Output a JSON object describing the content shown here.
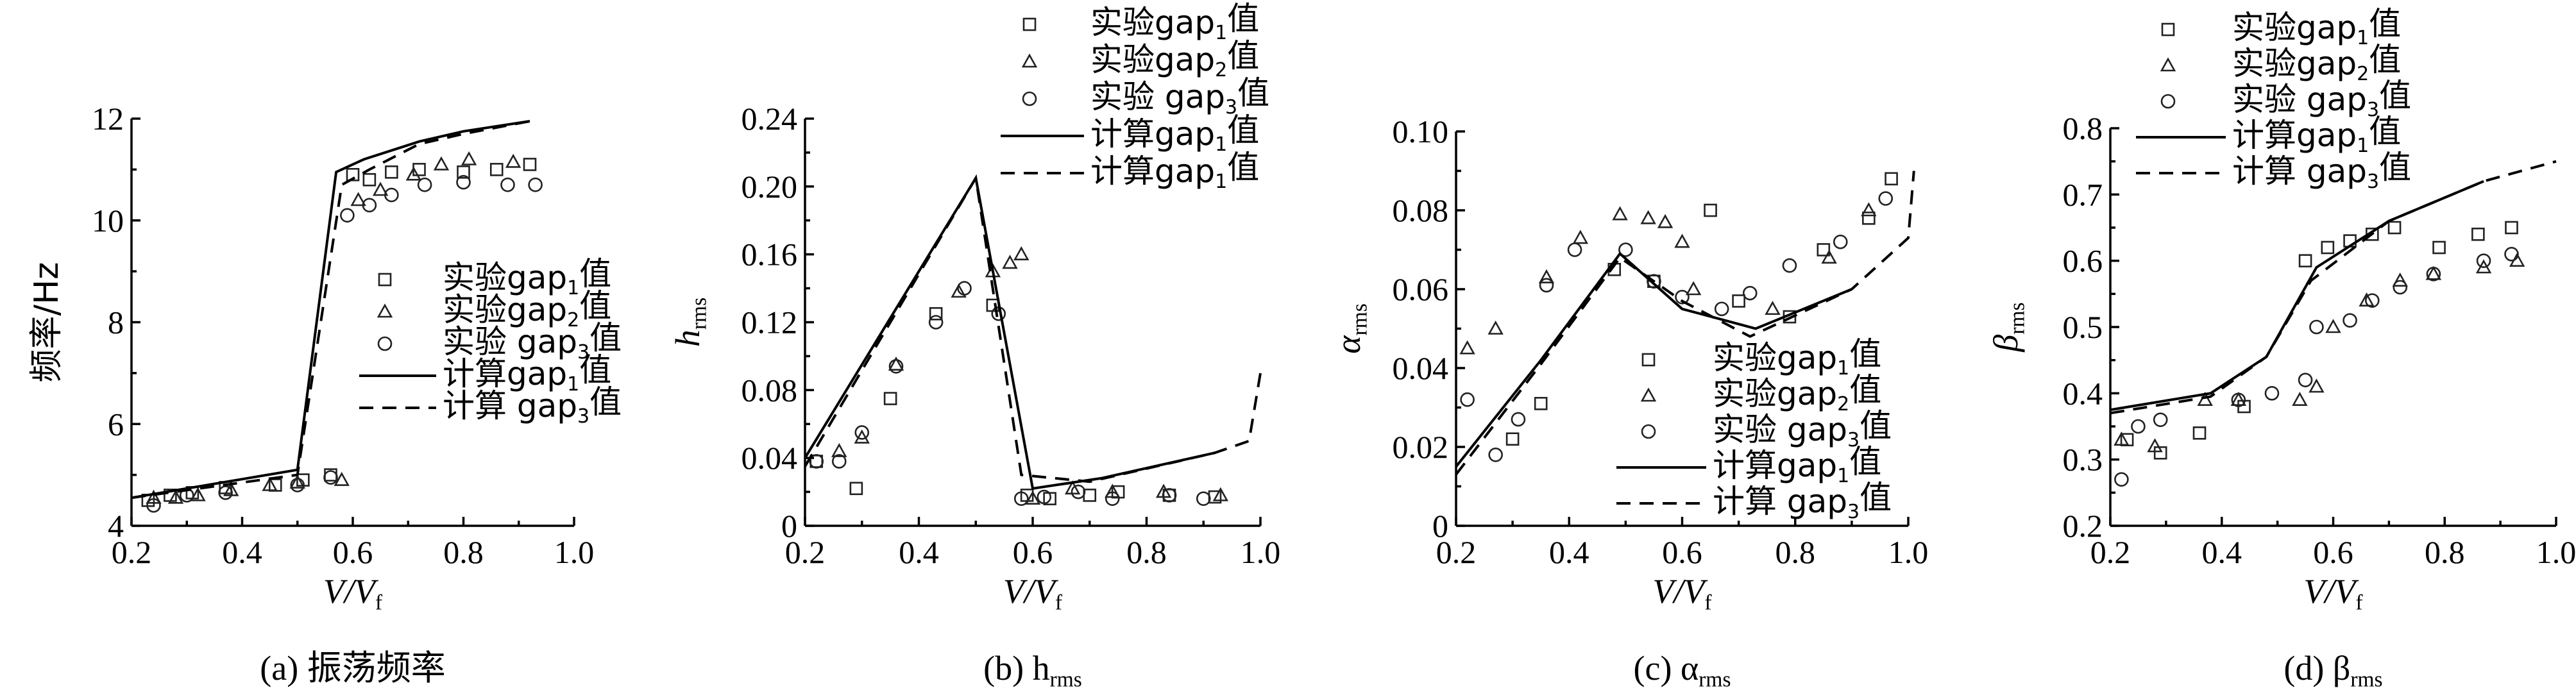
{
  "chart_data": [
    {
      "id": "a",
      "type": "line",
      "caption": "(a) 振荡频率",
      "xlabel": "V/V_f",
      "ylabel": "频率/Hz",
      "xlim": [
        0.2,
        1.0
      ],
      "ylim": [
        4,
        12
      ],
      "xticks": [
        0.2,
        0.4,
        0.6,
        0.8,
        1.0
      ],
      "yticks": [
        4,
        6,
        8,
        10,
        12
      ],
      "xtick_labels": [
        "0.2",
        "0.4",
        "0.6",
        "0.8",
        "1.0"
      ],
      "ytick_labels": [
        "4",
        "6",
        "8",
        "10",
        "12"
      ],
      "legend_position": "middle-right",
      "series": [
        {
          "name": "实验gap1值",
          "style": "square",
          "x": [
            0.23,
            0.27,
            0.31,
            0.37,
            0.46,
            0.51,
            0.56,
            0.6,
            0.63,
            0.67,
            0.72,
            0.8,
            0.86,
            0.92
          ],
          "y": [
            4.5,
            4.6,
            4.65,
            4.75,
            4.8,
            4.9,
            5.0,
            10.9,
            10.8,
            10.95,
            11.0,
            10.95,
            11.0,
            11.1
          ]
        },
        {
          "name": "实验gap2值",
          "style": "triangle",
          "x": [
            0.24,
            0.28,
            0.32,
            0.38,
            0.45,
            0.5,
            0.58,
            0.61,
            0.65,
            0.71,
            0.76,
            0.81,
            0.89
          ],
          "y": [
            4.55,
            4.55,
            4.6,
            4.7,
            4.8,
            4.85,
            4.9,
            10.4,
            10.6,
            10.9,
            11.1,
            11.2,
            11.15
          ]
        },
        {
          "name": "实验 gap3值",
          "style": "circle",
          "x": [
            0.24,
            0.3,
            0.37,
            0.5,
            0.56,
            0.59,
            0.63,
            0.67,
            0.73,
            0.8,
            0.88,
            0.93
          ],
          "y": [
            4.4,
            4.6,
            4.65,
            4.8,
            4.95,
            10.1,
            10.3,
            10.5,
            10.7,
            10.75,
            10.7,
            10.7
          ]
        },
        {
          "name": "计算gap1值",
          "style": "solid",
          "x": [
            0.2,
            0.5,
            0.57,
            0.62,
            0.72,
            0.8,
            0.92
          ],
          "y": [
            4.55,
            5.1,
            10.95,
            11.2,
            11.55,
            11.75,
            11.95
          ]
        },
        {
          "name": "计算 gap3值",
          "style": "dash",
          "x": [
            0.2,
            0.5,
            0.58,
            0.63,
            0.72,
            0.8,
            0.92
          ],
          "y": [
            4.55,
            5.0,
            10.7,
            11.0,
            11.5,
            11.7,
            11.95
          ]
        }
      ]
    },
    {
      "id": "b",
      "type": "line",
      "caption": "(b) h_rms",
      "xlabel": "V/V_f",
      "ylabel": "h_rms",
      "xlim": [
        0.2,
        1.0
      ],
      "ylim": [
        0,
        0.24
      ],
      "xticks": [
        0.2,
        0.4,
        0.6,
        0.8,
        1.0
      ],
      "yticks": [
        0,
        0.04,
        0.08,
        0.12,
        0.16,
        0.2,
        0.24
      ],
      "xtick_labels": [
        "0.2",
        "0.4",
        "0.6",
        "0.8",
        "1.0"
      ],
      "ytick_labels": [
        "0",
        "0.04",
        "0.08",
        "0.12",
        "0.16",
        "0.20",
        "0.24"
      ],
      "legend_position": "top-right",
      "series": [
        {
          "name": "实验gap1值",
          "style": "square",
          "x": [
            0.22,
            0.29,
            0.35,
            0.43,
            0.53,
            0.59,
            0.63,
            0.7,
            0.75,
            0.84,
            0.92
          ],
          "y": [
            0.038,
            0.022,
            0.075,
            0.125,
            0.13,
            0.018,
            0.016,
            0.018,
            0.02,
            0.018,
            0.017
          ]
        },
        {
          "name": "实验gap2值",
          "style": "triangle",
          "x": [
            0.26,
            0.3,
            0.36,
            0.47,
            0.53,
            0.56,
            0.58,
            0.6,
            0.67,
            0.74,
            0.83,
            0.93
          ],
          "y": [
            0.044,
            0.052,
            0.095,
            0.138,
            0.15,
            0.155,
            0.16,
            0.016,
            0.022,
            0.02,
            0.02,
            0.018
          ]
        },
        {
          "name": "实验 gap3值",
          "style": "circle",
          "x": [
            0.22,
            0.26,
            0.3,
            0.36,
            0.43,
            0.48,
            0.54,
            0.58,
            0.62,
            0.68,
            0.74,
            0.84,
            0.9
          ],
          "y": [
            0.038,
            0.038,
            0.055,
            0.094,
            0.12,
            0.14,
            0.125,
            0.016,
            0.017,
            0.02,
            0.016,
            0.018,
            0.016
          ]
        },
        {
          "name": "计算gap1值",
          "style": "solid",
          "x": [
            0.2,
            0.5,
            0.6,
            0.72,
            0.92
          ],
          "y": [
            0.04,
            0.205,
            0.022,
            0.028,
            0.043
          ]
        },
        {
          "name": "计算gap1值",
          "style": "dash",
          "x": [
            0.2,
            0.5,
            0.58,
            0.7,
            0.92,
            0.98,
            1.0
          ],
          "y": [
            0.035,
            0.205,
            0.03,
            0.026,
            0.043,
            0.05,
            0.09
          ]
        }
      ]
    },
    {
      "id": "c",
      "type": "line",
      "caption": "(c) α_rms",
      "xlabel": "V/V_f",
      "ylabel": "α_rms",
      "xlim": [
        0.2,
        1.0
      ],
      "ylim": [
        0,
        0.1
      ],
      "xticks": [
        0.2,
        0.4,
        0.6,
        0.8,
        1.0
      ],
      "yticks": [
        0,
        0.02,
        0.04,
        0.06,
        0.08,
        0.1
      ],
      "xtick_labels": [
        "0.2",
        "0.4",
        "0.6",
        "0.8",
        "1.0"
      ],
      "ytick_labels": [
        "0",
        "0.02",
        "0.04",
        "0.06",
        "0.08",
        "0.10"
      ],
      "legend_position": "bottom-right",
      "series": [
        {
          "name": "实验gap1值",
          "style": "square",
          "x": [
            0.3,
            0.35,
            0.48,
            0.55,
            0.65,
            0.7,
            0.79,
            0.85,
            0.93,
            0.97
          ],
          "y": [
            0.022,
            0.031,
            0.065,
            0.062,
            0.08,
            0.057,
            0.053,
            0.07,
            0.078,
            0.088
          ]
        },
        {
          "name": "实验gap2值",
          "style": "triangle",
          "x": [
            0.22,
            0.27,
            0.36,
            0.42,
            0.49,
            0.54,
            0.57,
            0.6,
            0.62,
            0.76,
            0.86,
            0.93
          ],
          "y": [
            0.045,
            0.05,
            0.063,
            0.073,
            0.079,
            0.078,
            0.077,
            0.072,
            0.06,
            0.055,
            0.068,
            0.08
          ]
        },
        {
          "name": "实验 gap3值",
          "style": "circle",
          "x": [
            0.22,
            0.27,
            0.31,
            0.36,
            0.41,
            0.5,
            0.55,
            0.6,
            0.67,
            0.72,
            0.79,
            0.88,
            0.96
          ],
          "y": [
            0.032,
            0.018,
            0.027,
            0.061,
            0.07,
            0.07,
            0.062,
            0.058,
            0.055,
            0.059,
            0.066,
            0.072,
            0.083
          ]
        },
        {
          "name": "计算gap1值",
          "style": "solid",
          "x": [
            0.2,
            0.35,
            0.49,
            0.6,
            0.73,
            0.9
          ],
          "y": [
            0.015,
            0.042,
            0.069,
            0.055,
            0.05,
            0.06
          ]
        },
        {
          "name": "计算 gap3值",
          "style": "dash",
          "x": [
            0.2,
            0.35,
            0.49,
            0.6,
            0.72,
            0.9,
            1.0,
            1.01
          ],
          "y": [
            0.013,
            0.041,
            0.068,
            0.057,
            0.048,
            0.06,
            0.073,
            0.09
          ]
        }
      ]
    },
    {
      "id": "d",
      "type": "line",
      "caption": "(d) β_rms",
      "xlabel": "V/V_f",
      "ylabel": "β_rms",
      "xlim": [
        0.2,
        1.0
      ],
      "ylim": [
        0.2,
        0.8
      ],
      "xticks": [
        0.2,
        0.4,
        0.6,
        0.8,
        1.0
      ],
      "yticks": [
        0.2,
        0.3,
        0.4,
        0.5,
        0.6,
        0.7,
        0.8
      ],
      "xtick_labels": [
        "0.2",
        "0.4",
        "0.6",
        "0.8",
        "1.0"
      ],
      "ytick_labels": [
        "0.2",
        "0.3",
        "0.4",
        "0.5",
        "0.6",
        "0.7",
        "0.8"
      ],
      "legend_position": "top-center",
      "series": [
        {
          "name": "实验gap1值",
          "style": "square",
          "x": [
            0.23,
            0.29,
            0.36,
            0.44,
            0.55,
            0.59,
            0.63,
            0.67,
            0.71,
            0.79,
            0.86,
            0.92
          ],
          "y": [
            0.33,
            0.31,
            0.34,
            0.38,
            0.6,
            0.62,
            0.63,
            0.64,
            0.65,
            0.62,
            0.64,
            0.65
          ]
        },
        {
          "name": "实验gap2值",
          "style": "triangle",
          "x": [
            0.22,
            0.28,
            0.37,
            0.43,
            0.54,
            0.57,
            0.6,
            0.66,
            0.72,
            0.78,
            0.87,
            0.93
          ],
          "y": [
            0.33,
            0.32,
            0.39,
            0.39,
            0.39,
            0.41,
            0.5,
            0.54,
            0.57,
            0.58,
            0.59,
            0.6
          ]
        },
        {
          "name": "实验 gap3值",
          "style": "circle",
          "x": [
            0.22,
            0.25,
            0.29,
            0.43,
            0.49,
            0.55,
            0.57,
            0.63,
            0.67,
            0.72,
            0.78,
            0.87,
            0.92
          ],
          "y": [
            0.27,
            0.35,
            0.36,
            0.39,
            0.4,
            0.42,
            0.5,
            0.51,
            0.54,
            0.56,
            0.58,
            0.6,
            0.61
          ]
        },
        {
          "name": "计算gap1值",
          "style": "solid",
          "x": [
            0.2,
            0.38,
            0.48,
            0.57,
            0.7,
            0.87
          ],
          "y": [
            0.375,
            0.4,
            0.455,
            0.59,
            0.66,
            0.72
          ]
        },
        {
          "name": "计算 gap3值",
          "style": "dash",
          "x": [
            0.2,
            0.38,
            0.48,
            0.56,
            0.7,
            0.87,
            1.0
          ],
          "y": [
            0.37,
            0.395,
            0.455,
            0.57,
            0.66,
            0.72,
            0.75
          ]
        }
      ]
    }
  ]
}
